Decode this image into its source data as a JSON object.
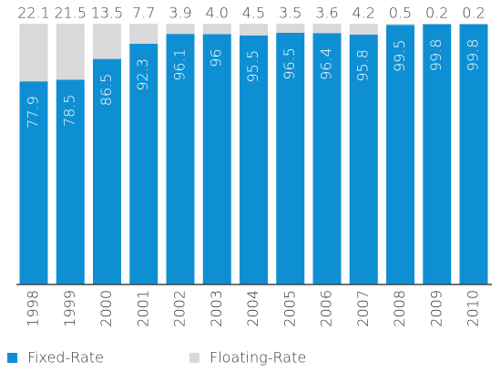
{
  "chart_data": {
    "type": "stacked_bar",
    "categories": [
      "1998",
      "1999",
      "2000",
      "2001",
      "2002",
      "2003",
      "2004",
      "2005",
      "2006",
      "2007",
      "2008",
      "2009",
      "2010"
    ],
    "series": [
      {
        "name": "Fixed-Rate",
        "color": "#0f8fd3",
        "values": [
          77.9,
          78.5,
          86.5,
          92.3,
          96.1,
          96,
          95.5,
          96.5,
          96.4,
          95.8,
          99.5,
          99.8,
          99.8
        ]
      },
      {
        "name": "Floating-Rate",
        "color": "#d9d9d9",
        "values": [
          22.1,
          21.5,
          13.5,
          7.7,
          3.9,
          4,
          4.5,
          3.5,
          3.6,
          4.2,
          0.5,
          0.2,
          0.2
        ],
        "value_labels": [
          "22.1",
          "21.5",
          "13.5",
          "7.7",
          "3.9",
          "4.0",
          "4.5",
          "3.5",
          "3.6",
          "4.2",
          "0.5",
          "0.2",
          "0.2"
        ]
      }
    ],
    "ylim": [
      0,
      100
    ],
    "legend": "bottom"
  }
}
